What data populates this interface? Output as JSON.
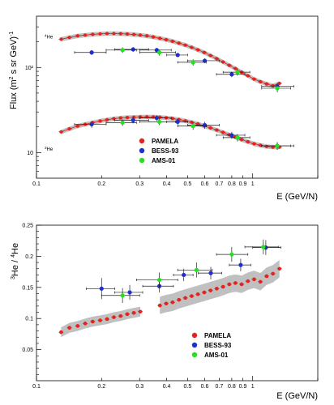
{
  "colors": {
    "pamela": "#e8211b",
    "bess": "#1f2ecf",
    "ams": "#22e21f",
    "band": "#c0c0c0",
    "axis": "#000000",
    "errbar": "#222222"
  },
  "chart_data": [
    {
      "type": "scatter",
      "scale": {
        "x": "log",
        "y": "log"
      },
      "xlim": [
        0.1,
        2.0
      ],
      "ylim": [
        5,
        400
      ],
      "xlabel": "E (GeV/N)",
      "ylabel": "Flux (m^2 s sr GeV)^-1",
      "ylabel_parts": {
        "main": "Flux (m",
        "sup1": "2",
        "mid": " s sr GeV)",
        "sup2": "-1"
      },
      "xlabel_parts": {
        "main": "E (GeV/N)"
      },
      "x_ticks": [
        {
          "v": 0.1,
          "label": "0.1"
        },
        {
          "v": 0.2,
          "label": "0.2"
        },
        {
          "v": 0.3,
          "label": "0.3"
        },
        {
          "v": 0.4,
          "label": "0.4"
        },
        {
          "v": 0.5,
          "label": "0.5"
        },
        {
          "v": 0.6,
          "label": "0.6"
        },
        {
          "v": 0.7,
          "label": "0.7"
        },
        {
          "v": 0.8,
          "label": "0.8"
        },
        {
          "v": 0.9,
          "label": "0.9"
        },
        {
          "v": 1.0,
          "label": "1"
        }
      ],
      "y_ticks": [
        {
          "v": 10,
          "label": "10"
        },
        {
          "v": 100,
          "label": "10²"
        }
      ],
      "isotope_labels": [
        {
          "base": "He",
          "mass": "4",
          "at_y": 220
        },
        {
          "base": "He",
          "mass": "3",
          "at_y": 10.5
        }
      ],
      "series": [
        {
          "name": "PAMELA",
          "color_key": "pamela",
          "x": [
            0.13,
            0.142,
            0.155,
            0.168,
            0.182,
            0.197,
            0.212,
            0.228,
            0.245,
            0.263,
            0.282,
            0.302,
            0.324,
            0.347,
            0.372,
            0.398,
            0.426,
            0.456,
            0.488,
            0.522,
            0.558,
            0.597,
            0.638,
            0.682,
            0.729,
            0.779,
            0.832,
            0.889,
            0.95,
            1.015,
            1.085,
            1.16,
            1.24,
            1.33
          ],
          "y": [
            215,
            225,
            235,
            240,
            245,
            248,
            250,
            250,
            249,
            247,
            244,
            240,
            235,
            228,
            220,
            212,
            203,
            193,
            183,
            172,
            161,
            150,
            138,
            127,
            116,
            106,
            97,
            88,
            80,
            73,
            68,
            64,
            61,
            65
          ]
        },
        {
          "name": "PAMELA",
          "color_key": "pamela",
          "x": [
            0.13,
            0.142,
            0.155,
            0.168,
            0.182,
            0.197,
            0.212,
            0.228,
            0.245,
            0.263,
            0.282,
            0.302,
            0.324,
            0.347,
            0.372,
            0.398,
            0.426,
            0.456,
            0.488,
            0.522,
            0.558,
            0.597,
            0.638,
            0.682,
            0.729,
            0.779,
            0.832,
            0.889,
            0.95,
            1.015,
            1.085,
            1.16,
            1.24,
            1.33
          ],
          "y": [
            17.5,
            19,
            20.5,
            21.5,
            22.5,
            23.5,
            24.3,
            25,
            25.5,
            25.8,
            26,
            26.2,
            26.3,
            26.2,
            26,
            25.6,
            25.1,
            24.4,
            23.6,
            22.7,
            21.7,
            20.6,
            19.5,
            18.4,
            17.3,
            16.2,
            15.2,
            14.2,
            13.4,
            12.7,
            12.2,
            11.8,
            11.6,
            11.6
          ]
        },
        {
          "name": "BESS-93",
          "color_key": "bess",
          "x": [
            0.18,
            0.28,
            0.36,
            0.45,
            0.6,
            0.8,
            1.3
          ],
          "y": [
            150,
            163,
            160,
            140,
            120,
            83,
            60
          ],
          "xerr_lo": [
            0.03,
            0.05,
            0.06,
            0.05,
            0.1,
            0.12,
            0.2
          ],
          "xerr_hi": [
            0.03,
            0.05,
            0.06,
            0.05,
            0.1,
            0.12,
            0.25
          ],
          "yerr": [
            10,
            10,
            10,
            8,
            8,
            6,
            6
          ]
        },
        {
          "name": "BESS-93",
          "color_key": "bess",
          "x": [
            0.18,
            0.28,
            0.36,
            0.45,
            0.6,
            0.8,
            1.3
          ],
          "y": [
            21.5,
            24,
            25.5,
            23,
            21,
            16,
            12
          ],
          "xerr_lo": [
            0.03,
            0.05,
            0.06,
            0.05,
            0.1,
            0.12,
            0.2
          ],
          "xerr_hi": [
            0.03,
            0.05,
            0.06,
            0.05,
            0.1,
            0.12,
            0.25
          ],
          "yerr": [
            2,
            2,
            2,
            2,
            2,
            1.5,
            1.2
          ]
        },
        {
          "name": "AMS-01",
          "color_key": "ams",
          "x": [
            0.25,
            0.37,
            0.53,
            0.85,
            1.3
          ],
          "y": [
            160,
            150,
            115,
            88,
            57
          ],
          "xerr_lo": [
            0.04,
            0.07,
            0.08,
            0.12,
            0.2
          ],
          "xerr_hi": [
            0.04,
            0.07,
            0.08,
            0.12,
            0.2
          ],
          "yerr": [
            12,
            12,
            10,
            8,
            6
          ]
        },
        {
          "name": "AMS-01",
          "color_key": "ams",
          "x": [
            0.25,
            0.37,
            0.53,
            0.85,
            1.3
          ],
          "y": [
            22.5,
            23,
            20.5,
            15,
            12
          ],
          "xerr_lo": [
            0.04,
            0.07,
            0.08,
            0.12,
            0.2
          ],
          "xerr_hi": [
            0.04,
            0.07,
            0.08,
            0.12,
            0.2
          ],
          "yerr": [
            2,
            2,
            2,
            1.5,
            1.2
          ]
        }
      ],
      "legend": {
        "position": "center-right",
        "entries": [
          {
            "label": "PAMELA",
            "color_key": "pamela"
          },
          {
            "label": "BESS-93",
            "color_key": "bess"
          },
          {
            "label": "AMS-01",
            "color_key": "ams"
          }
        ]
      }
    },
    {
      "type": "scatter",
      "scale": {
        "x": "log",
        "y": "linear"
      },
      "xlim": [
        0.1,
        2.0
      ],
      "ylim": [
        0.0,
        0.25
      ],
      "xlabel": "E (GeV/N)",
      "ylabel": "3He / 4He",
      "ylabel_parts": {
        "sup1": "3",
        "a": "He / ",
        "sup2": "4",
        "b": "He"
      },
      "xlabel_parts": {
        "main": "E (GeV/N)"
      },
      "x_ticks": [
        {
          "v": 0.1,
          "label": "0.1"
        },
        {
          "v": 0.2,
          "label": "0.2"
        },
        {
          "v": 0.3,
          "label": "0.3"
        },
        {
          "v": 0.4,
          "label": "0.4"
        },
        {
          "v": 0.5,
          "label": "0.5"
        },
        {
          "v": 0.6,
          "label": "0.6"
        },
        {
          "v": 0.7,
          "label": "0.7"
        },
        {
          "v": 0.8,
          "label": "0.8"
        },
        {
          "v": 0.9,
          "label": "0.9"
        },
        {
          "v": 1.0,
          "label": "1"
        }
      ],
      "y_ticks": [
        {
          "v": 0.05,
          "label": "0.05"
        },
        {
          "v": 0.1,
          "label": "0.1"
        },
        {
          "v": 0.15,
          "label": "0.15"
        },
        {
          "v": 0.2,
          "label": "0.2"
        },
        {
          "v": 0.25,
          "label": "0.25"
        }
      ],
      "series": [
        {
          "name": "PAMELA",
          "color_key": "pamela",
          "x": [
            0.13,
            0.142,
            0.155,
            0.168,
            0.182,
            0.197,
            0.212,
            0.228,
            0.245,
            0.263,
            0.282,
            0.302,
            0.372,
            0.398,
            0.426,
            0.456,
            0.488,
            0.522,
            0.558,
            0.597,
            0.638,
            0.682,
            0.729,
            0.779,
            0.832,
            0.889,
            0.95,
            1.015,
            1.085,
            1.16,
            1.24,
            1.33
          ],
          "y": [
            0.078,
            0.085,
            0.088,
            0.092,
            0.095,
            0.097,
            0.099,
            0.102,
            0.104,
            0.107,
            0.109,
            0.111,
            0.121,
            0.124,
            0.126,
            0.13,
            0.133,
            0.136,
            0.139,
            0.142,
            0.145,
            0.148,
            0.151,
            0.155,
            0.157,
            0.155,
            0.16,
            0.163,
            0.159,
            0.168,
            0.172,
            0.18
          ]
        },
        {
          "name": "BESS-93",
          "color_key": "bess",
          "x": [
            0.2,
            0.27,
            0.37,
            0.48,
            0.64,
            0.88,
            1.15
          ],
          "y": [
            0.148,
            0.142,
            0.152,
            0.17,
            0.173,
            0.186,
            0.214
          ],
          "xerr_lo": [
            0.03,
            0.04,
            0.06,
            0.05,
            0.08,
            0.1,
            0.15
          ],
          "xerr_hi": [
            0.03,
            0.04,
            0.06,
            0.05,
            0.08,
            0.1,
            0.2
          ],
          "yerr": [
            0.017,
            0.012,
            0.01,
            0.01,
            0.01,
            0.01,
            0.012
          ]
        },
        {
          "name": "AMS-01",
          "color_key": "ams",
          "x": [
            0.25,
            0.37,
            0.55,
            0.8,
            1.12
          ],
          "y": [
            0.137,
            0.162,
            0.178,
            0.203,
            0.215
          ],
          "xerr_lo": [
            0.05,
            0.08,
            0.1,
            0.12,
            0.2
          ],
          "xerr_hi": [
            0.05,
            0.08,
            0.1,
            0.15,
            0.2
          ],
          "yerr": [
            0.012,
            0.012,
            0.012,
            0.012,
            0.012
          ]
        }
      ],
      "legend": {
        "position": "bottom-right",
        "entries": [
          {
            "label": "PAMELA",
            "color_key": "pamela"
          },
          {
            "label": "BESS-93",
            "color_key": "bess"
          },
          {
            "label": "AMS-01",
            "color_key": "ams"
          }
        ]
      }
    }
  ]
}
